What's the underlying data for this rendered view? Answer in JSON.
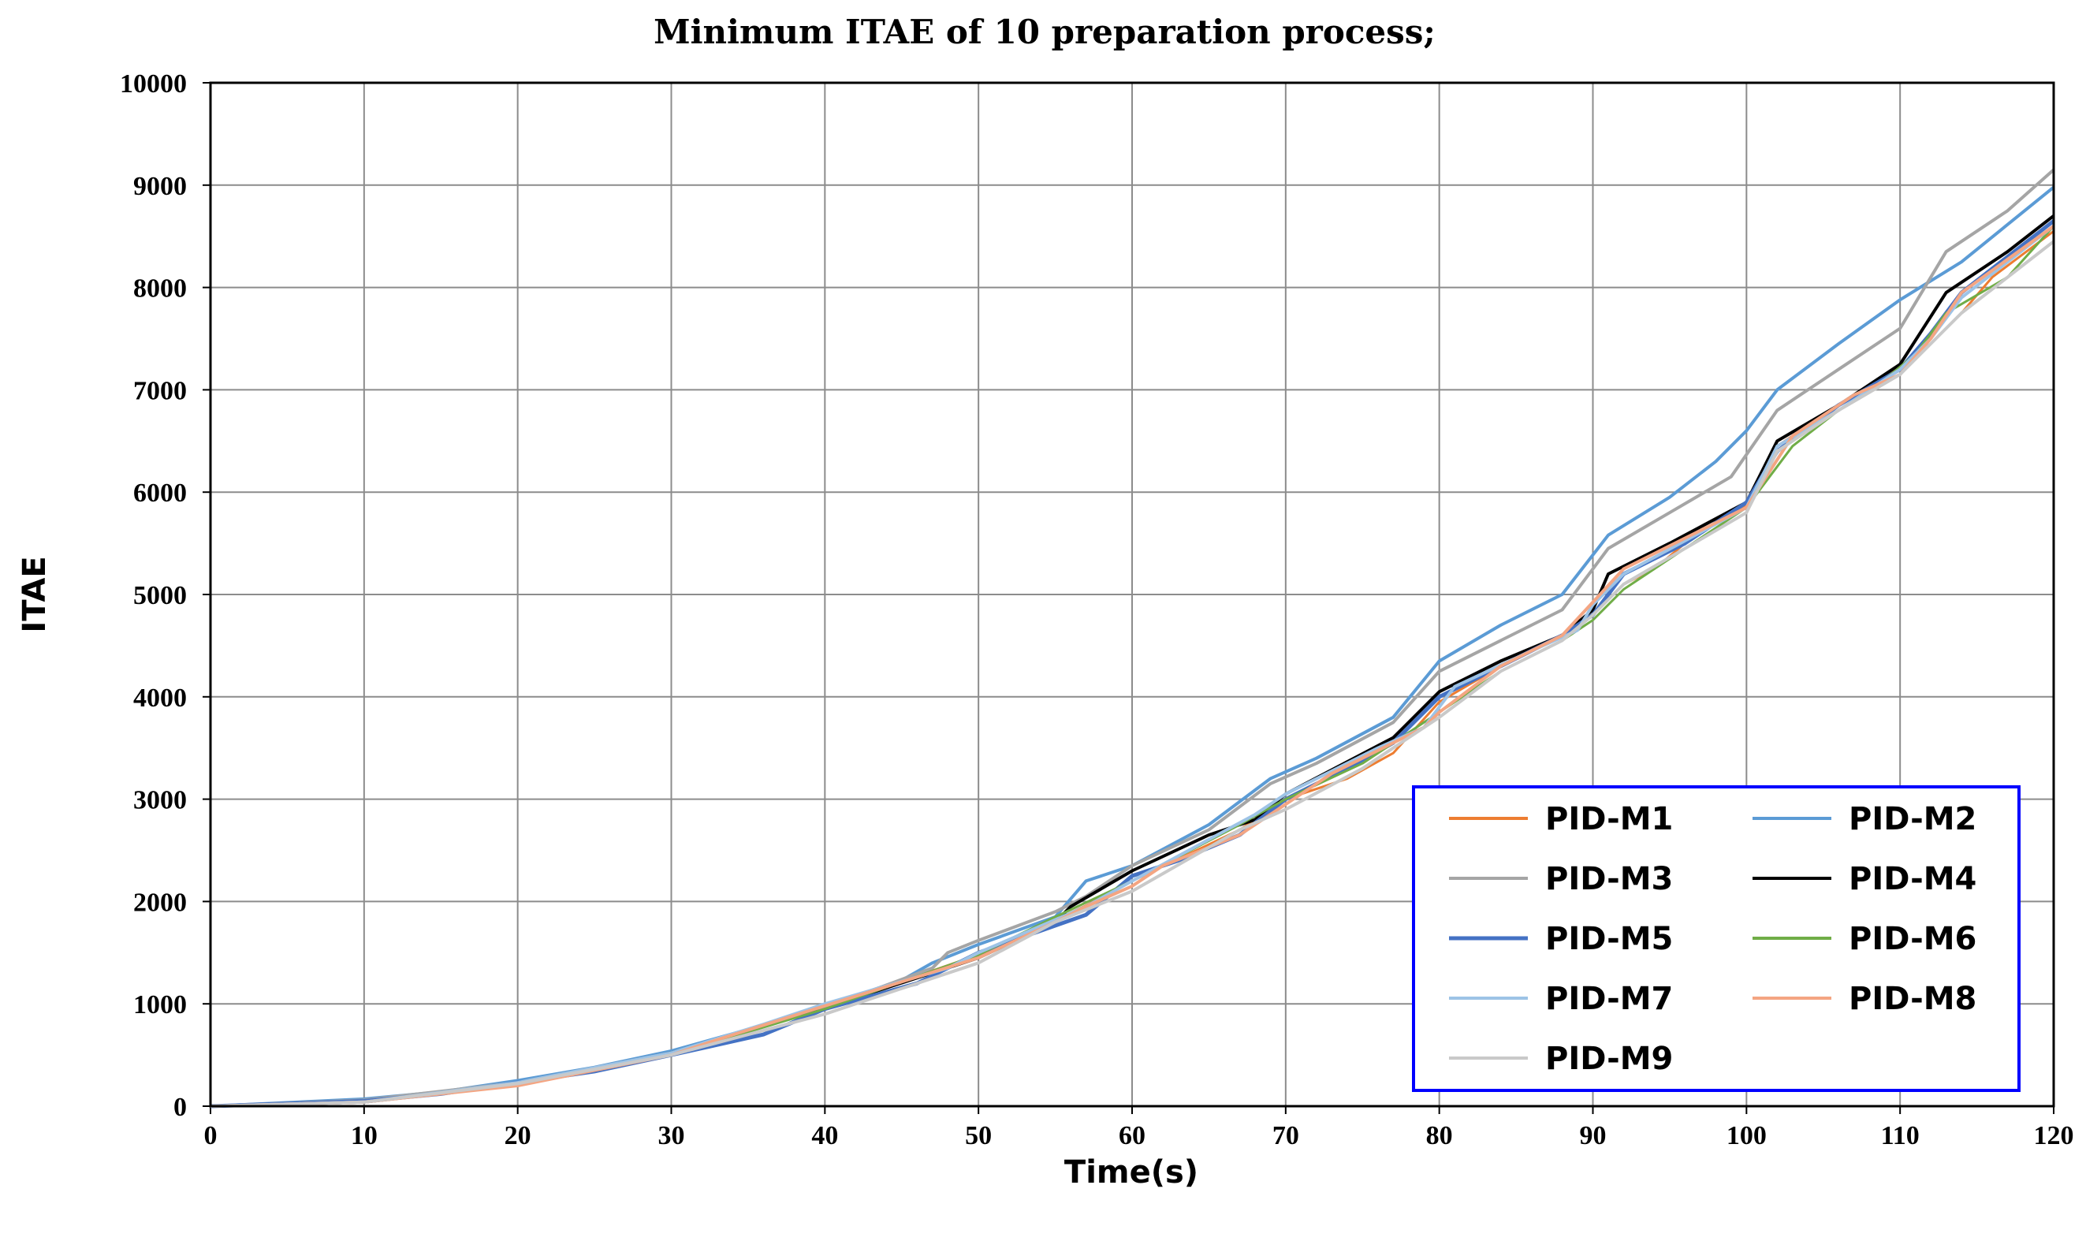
{
  "chart_data": {
    "type": "line",
    "title": "Minimum ITAE  of 10 preparation process;",
    "xlabel": "Time(s)",
    "ylabel": "ITAE",
    "xlim": [
      0,
      120
    ],
    "ylim": [
      0,
      10000
    ],
    "x_ticks": [
      "0",
      "10",
      "20",
      "30",
      "40",
      "50",
      "60",
      "70",
      "80",
      "90",
      "100",
      "110",
      "120"
    ],
    "y_ticks": [
      "0",
      "1000",
      "2000",
      "3000",
      "4000",
      "5000",
      "6000",
      "7000",
      "8000",
      "9000",
      "10000"
    ],
    "grid": true,
    "legend_position": "bottom-right",
    "series": [
      {
        "name": "PID-M1",
        "color": "#ED7D31",
        "width": 3,
        "points": [
          [
            0,
            0
          ],
          [
            10,
            40
          ],
          [
            20,
            220
          ],
          [
            30,
            520
          ],
          [
            40,
            960
          ],
          [
            50,
            1480
          ],
          [
            57,
            1960
          ],
          [
            60,
            2200
          ],
          [
            67,
            2700
          ],
          [
            70,
            3000
          ],
          [
            74,
            3200
          ],
          [
            77,
            3450
          ],
          [
            80,
            3950
          ],
          [
            84,
            4300
          ],
          [
            88,
            4600
          ],
          [
            90,
            4800
          ],
          [
            92,
            5100
          ],
          [
            94,
            5250
          ],
          [
            96,
            5500
          ],
          [
            100,
            5880
          ],
          [
            102,
            6450
          ],
          [
            106,
            6850
          ],
          [
            110,
            7220
          ],
          [
            112,
            7450
          ],
          [
            114,
            7750
          ],
          [
            116,
            8100
          ],
          [
            120,
            8550
          ]
        ]
      },
      {
        "name": "PID-M2",
        "color": "#5B9BD5",
        "width": 4,
        "points": [
          [
            0,
            0
          ],
          [
            10,
            70
          ],
          [
            15,
            140
          ],
          [
            20,
            250
          ],
          [
            25,
            380
          ],
          [
            30,
            540
          ],
          [
            35,
            750
          ],
          [
            40,
            980
          ],
          [
            45,
            1230
          ],
          [
            47,
            1400
          ],
          [
            50,
            1580
          ],
          [
            55,
            1850
          ],
          [
            57,
            2200
          ],
          [
            60,
            2350
          ],
          [
            65,
            2750
          ],
          [
            69,
            3200
          ],
          [
            72,
            3400
          ],
          [
            77,
            3800
          ],
          [
            80,
            4350
          ],
          [
            84,
            4700
          ],
          [
            88,
            5000
          ],
          [
            91,
            5580
          ],
          [
            95,
            5950
          ],
          [
            98,
            6300
          ],
          [
            100,
            6600
          ],
          [
            102,
            7000
          ],
          [
            106,
            7450
          ],
          [
            110,
            7880
          ],
          [
            114,
            8250
          ],
          [
            120,
            8980
          ]
        ]
      },
      {
        "name": "PID-M3",
        "color": "#A5A5A5",
        "width": 4,
        "points": [
          [
            0,
            0
          ],
          [
            10,
            60
          ],
          [
            20,
            230
          ],
          [
            30,
            520
          ],
          [
            40,
            960
          ],
          [
            47,
            1350
          ],
          [
            48,
            1500
          ],
          [
            50,
            1620
          ],
          [
            55,
            1900
          ],
          [
            57,
            2050
          ],
          [
            60,
            2350
          ],
          [
            65,
            2700
          ],
          [
            69,
            3150
          ],
          [
            72,
            3350
          ],
          [
            77,
            3750
          ],
          [
            80,
            4250
          ],
          [
            84,
            4550
          ],
          [
            88,
            4850
          ],
          [
            91,
            5450
          ],
          [
            95,
            5800
          ],
          [
            99,
            6150
          ],
          [
            102,
            6800
          ],
          [
            106,
            7200
          ],
          [
            110,
            7600
          ],
          [
            113,
            8350
          ],
          [
            117,
            8750
          ],
          [
            120,
            9150
          ]
        ]
      },
      {
        "name": "PID-M4",
        "color": "#000000",
        "width": 4,
        "points": [
          [
            0,
            0
          ],
          [
            10,
            40
          ],
          [
            20,
            210
          ],
          [
            30,
            520
          ],
          [
            40,
            960
          ],
          [
            50,
            1450
          ],
          [
            55,
            1800
          ],
          [
            56,
            1950
          ],
          [
            60,
            2300
          ],
          [
            65,
            2650
          ],
          [
            68,
            2800
          ],
          [
            70,
            3050
          ],
          [
            77,
            3600
          ],
          [
            80,
            4050
          ],
          [
            84,
            4350
          ],
          [
            88,
            4600
          ],
          [
            90,
            4850
          ],
          [
            91,
            5200
          ],
          [
            95,
            5500
          ],
          [
            100,
            5900
          ],
          [
            102,
            6500
          ],
          [
            106,
            6850
          ],
          [
            110,
            7250
          ],
          [
            113,
            7950
          ],
          [
            117,
            8350
          ],
          [
            120,
            8700
          ]
        ]
      },
      {
        "name": "PID-M5",
        "color": "#4472C4",
        "width": 5,
        "points": [
          [
            0,
            0
          ],
          [
            10,
            50
          ],
          [
            15,
            120
          ],
          [
            20,
            230
          ],
          [
            25,
            340
          ],
          [
            30,
            500
          ],
          [
            36,
            700
          ],
          [
            40,
            950
          ],
          [
            46,
            1200
          ],
          [
            50,
            1500
          ],
          [
            57,
            1870
          ],
          [
            60,
            2250
          ],
          [
            63,
            2400
          ],
          [
            67,
            2650
          ],
          [
            70,
            3000
          ],
          [
            74,
            3300
          ],
          [
            77,
            3550
          ],
          [
            80,
            4000
          ],
          [
            84,
            4300
          ],
          [
            88,
            4600
          ],
          [
            90,
            4800
          ],
          [
            92,
            5200
          ],
          [
            96,
            5500
          ],
          [
            100,
            5900
          ],
          [
            102,
            6400
          ],
          [
            106,
            6850
          ],
          [
            110,
            7200
          ],
          [
            112,
            7550
          ],
          [
            114,
            7950
          ],
          [
            120,
            8650
          ]
        ]
      },
      {
        "name": "PID-M6",
        "color": "#70AD47",
        "width": 3,
        "points": [
          [
            0,
            0
          ],
          [
            10,
            40
          ],
          [
            20,
            210
          ],
          [
            30,
            500
          ],
          [
            40,
            950
          ],
          [
            50,
            1480
          ],
          [
            55,
            1850
          ],
          [
            60,
            2200
          ],
          [
            67,
            2750
          ],
          [
            70,
            3000
          ],
          [
            75,
            3350
          ],
          [
            80,
            3850
          ],
          [
            84,
            4250
          ],
          [
            88,
            4550
          ],
          [
            90,
            4750
          ],
          [
            92,
            5050
          ],
          [
            96,
            5450
          ],
          [
            100,
            5850
          ],
          [
            101,
            6050
          ],
          [
            103,
            6450
          ],
          [
            106,
            6800
          ],
          [
            109,
            7100
          ],
          [
            111,
            7350
          ],
          [
            113,
            7750
          ],
          [
            117,
            8100
          ],
          [
            120,
            8600
          ]
        ]
      },
      {
        "name": "PID-M7",
        "color": "#9DC3E6",
        "width": 4,
        "points": [
          [
            0,
            0
          ],
          [
            10,
            40
          ],
          [
            20,
            230
          ],
          [
            30,
            520
          ],
          [
            36,
            800
          ],
          [
            40,
            1000
          ],
          [
            48,
            1350
          ],
          [
            50,
            1500
          ],
          [
            57,
            1950
          ],
          [
            60,
            2200
          ],
          [
            68,
            2850
          ],
          [
            70,
            3050
          ],
          [
            76,
            3500
          ],
          [
            79,
            3700
          ],
          [
            81,
            4100
          ],
          [
            86,
            4450
          ],
          [
            89,
            4650
          ],
          [
            90,
            4900
          ],
          [
            92,
            5200
          ],
          [
            100,
            5850
          ],
          [
            102,
            6450
          ],
          [
            106,
            6800
          ],
          [
            110,
            7200
          ],
          [
            112,
            7500
          ],
          [
            114,
            7900
          ],
          [
            120,
            8600
          ]
        ]
      },
      {
        "name": "PID-M8",
        "color": "#F4A582",
        "width": 4,
        "points": [
          [
            0,
            0
          ],
          [
            10,
            40
          ],
          [
            20,
            200
          ],
          [
            30,
            500
          ],
          [
            33,
            650
          ],
          [
            40,
            980
          ],
          [
            50,
            1450
          ],
          [
            55,
            1800
          ],
          [
            57,
            1950
          ],
          [
            60,
            2150
          ],
          [
            62,
            2350
          ],
          [
            67,
            2650
          ],
          [
            70,
            2950
          ],
          [
            73,
            3250
          ],
          [
            77,
            3550
          ],
          [
            79,
            3700
          ],
          [
            80,
            3850
          ],
          [
            84,
            4300
          ],
          [
            88,
            4600
          ],
          [
            92,
            5250
          ],
          [
            96,
            5550
          ],
          [
            100,
            5850
          ],
          [
            103,
            6550
          ],
          [
            107,
            6950
          ],
          [
            110,
            7150
          ],
          [
            112,
            7500
          ],
          [
            114,
            7950
          ],
          [
            120,
            8600
          ]
        ]
      },
      {
        "name": "PID-M9",
        "color": "#C9C9C9",
        "width": 4,
        "points": [
          [
            0,
            0
          ],
          [
            10,
            40
          ],
          [
            20,
            220
          ],
          [
            30,
            500
          ],
          [
            40,
            900
          ],
          [
            50,
            1400
          ],
          [
            55,
            1800
          ],
          [
            60,
            2100
          ],
          [
            67,
            2700
          ],
          [
            70,
            2900
          ],
          [
            75,
            3300
          ],
          [
            77,
            3500
          ],
          [
            80,
            3800
          ],
          [
            84,
            4250
          ],
          [
            88,
            4550
          ],
          [
            90,
            4800
          ],
          [
            92,
            5100
          ],
          [
            96,
            5450
          ],
          [
            100,
            5800
          ],
          [
            102,
            6400
          ],
          [
            106,
            6800
          ],
          [
            110,
            7150
          ],
          [
            112,
            7450
          ],
          [
            114,
            7750
          ],
          [
            120,
            8450
          ]
        ]
      }
    ]
  }
}
